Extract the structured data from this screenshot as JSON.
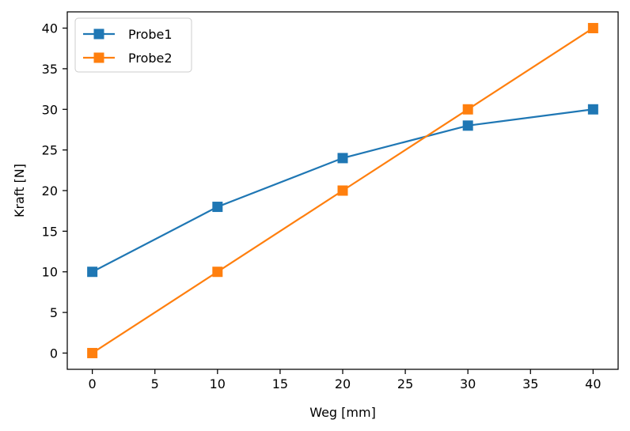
{
  "chart_data": {
    "type": "line",
    "title": "",
    "xlabel": "Weg [mm]",
    "ylabel": "Kraft [N]",
    "x": [
      0,
      10,
      20,
      30,
      40
    ],
    "xlim": [
      -2,
      42
    ],
    "ylim": [
      -2,
      42
    ],
    "xticks": [
      0,
      5,
      10,
      15,
      20,
      25,
      30,
      35,
      40
    ],
    "yticks": [
      0,
      5,
      10,
      15,
      20,
      25,
      30,
      35,
      40
    ],
    "grid": false,
    "legend_position": "top-left",
    "series": [
      {
        "name": "Probe1",
        "values": [
          10,
          18,
          24,
          28,
          30
        ],
        "color": "#1f77b4",
        "marker": "square"
      },
      {
        "name": "Probe2",
        "values": [
          0,
          10,
          20,
          30,
          40
        ],
        "color": "#ff7f0e",
        "marker": "square"
      }
    ]
  }
}
